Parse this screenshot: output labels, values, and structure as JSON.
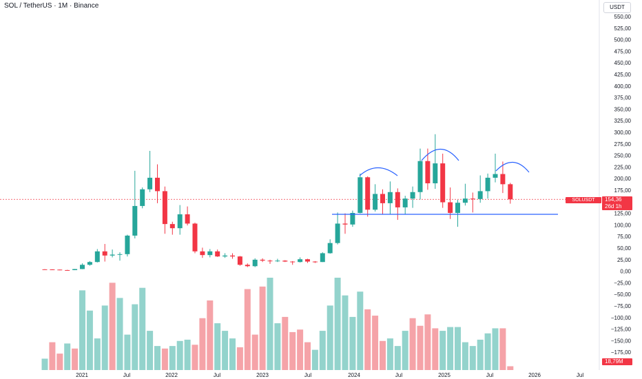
{
  "header": {
    "title": "SOL / TetherUS · 1M · Binance",
    "currency": "USDT"
  },
  "badges": {
    "ticker": "SOLUSDT",
    "price": "154,36",
    "countdown": "26d 1h",
    "volume": "18,79M"
  },
  "colors": {
    "up": "#26a69a",
    "down": "#f23645",
    "up_volume": "#93d3cc",
    "down_volume": "#f5a3a8",
    "support_line": "#2962ff",
    "arc": "#2962ff",
    "price_line": "#f23645"
  },
  "chart_data": {
    "type": "candlestick",
    "y_ticks": [
      "550,00",
      "525,00",
      "500,00",
      "475,00",
      "450,00",
      "425,00",
      "400,00",
      "375,00",
      "350,00",
      "325,00",
      "300,00",
      "275,00",
      "250,00",
      "225,00",
      "200,00",
      "175,00",
      "150,00",
      "125,00",
      "100,00",
      "75,00",
      "50,00",
      "25,00",
      "0,00",
      "−25,00",
      "−50,00",
      "−75,00",
      "−100,00",
      "−125,00",
      "−150,00",
      "−175,00"
    ],
    "x_ticks": [
      "2021",
      "Jul",
      "2022",
      "Jul",
      "2023",
      "Jul",
      "2024",
      "Jul",
      "2025",
      "Jul",
      "2026",
      "Jul"
    ],
    "support_level": 122,
    "current_price": 154.36,
    "candles": [
      {
        "date": "2020-09",
        "o": 3.2,
        "h": 3.6,
        "l": 2.5,
        "c": 3.0
      },
      {
        "date": "2020-10",
        "o": 3.0,
        "h": 3.4,
        "l": 2.5,
        "c": 2.6
      },
      {
        "date": "2020-11",
        "o": 2.6,
        "h": 2.8,
        "l": 1.2,
        "c": 1.6
      },
      {
        "date": "2020-12",
        "o": 1.6,
        "h": 2.2,
        "l": 1.0,
        "c": 1.5
      },
      {
        "date": "2021-01",
        "o": 1.5,
        "h": 4.0,
        "l": 1.4,
        "c": 3.8
      },
      {
        "date": "2021-02",
        "o": 3.8,
        "h": 16,
        "l": 3.5,
        "c": 13
      },
      {
        "date": "2021-03",
        "o": 13,
        "h": 21,
        "l": 11,
        "c": 19
      },
      {
        "date": "2021-04",
        "o": 19,
        "h": 47,
        "l": 18,
        "c": 42
      },
      {
        "date": "2021-05",
        "o": 42,
        "h": 58,
        "l": 20,
        "c": 33
      },
      {
        "date": "2021-06",
        "o": 33,
        "h": 46,
        "l": 29,
        "c": 35
      },
      {
        "date": "2021-07",
        "o": 35,
        "h": 40,
        "l": 22,
        "c": 36
      },
      {
        "date": "2021-08",
        "o": 36,
        "h": 78,
        "l": 31,
        "c": 76
      },
      {
        "date": "2021-09",
        "o": 76,
        "h": 216,
        "l": 70,
        "c": 140
      },
      {
        "date": "2021-10",
        "o": 140,
        "h": 180,
        "l": 135,
        "c": 176
      },
      {
        "date": "2021-11",
        "o": 176,
        "h": 259,
        "l": 170,
        "c": 201
      },
      {
        "date": "2021-12",
        "o": 201,
        "h": 230,
        "l": 146,
        "c": 172
      },
      {
        "date": "2022-01",
        "o": 172,
        "h": 182,
        "l": 80,
        "c": 101
      },
      {
        "date": "2022-02",
        "o": 101,
        "h": 106,
        "l": 78,
        "c": 92
      },
      {
        "date": "2022-03",
        "o": 92,
        "h": 142,
        "l": 78,
        "c": 122
      },
      {
        "date": "2022-04",
        "o": 122,
        "h": 139,
        "l": 98,
        "c": 102
      },
      {
        "date": "2022-05",
        "o": 102,
        "h": 104,
        "l": 38,
        "c": 42
      },
      {
        "date": "2022-06",
        "o": 42,
        "h": 50,
        "l": 28,
        "c": 34
      },
      {
        "date": "2022-07",
        "o": 34,
        "h": 47,
        "l": 29,
        "c": 42
      },
      {
        "date": "2022-08",
        "o": 42,
        "h": 46,
        "l": 30,
        "c": 31
      },
      {
        "date": "2022-09",
        "o": 31,
        "h": 38,
        "l": 28,
        "c": 33
      },
      {
        "date": "2022-10",
        "o": 33,
        "h": 38,
        "l": 26,
        "c": 31
      },
      {
        "date": "2022-11",
        "o": 31,
        "h": 32,
        "l": 11,
        "c": 13
      },
      {
        "date": "2022-12",
        "o": 13,
        "h": 16,
        "l": 8,
        "c": 10
      },
      {
        "date": "2023-01",
        "o": 10,
        "h": 27,
        "l": 8,
        "c": 24
      },
      {
        "date": "2023-02",
        "o": 24,
        "h": 27,
        "l": 19,
        "c": 22
      },
      {
        "date": "2023-03",
        "o": 22,
        "h": 24,
        "l": 15,
        "c": 21
      },
      {
        "date": "2023-04",
        "o": 21,
        "h": 26,
        "l": 19,
        "c": 22
      },
      {
        "date": "2023-05",
        "o": 22,
        "h": 23,
        "l": 19,
        "c": 20
      },
      {
        "date": "2023-06",
        "o": 20,
        "h": 21,
        "l": 13,
        "c": 19
      },
      {
        "date": "2023-07",
        "o": 19,
        "h": 29,
        "l": 18,
        "c": 25
      },
      {
        "date": "2023-08",
        "o": 25,
        "h": 26,
        "l": 17,
        "c": 20
      },
      {
        "date": "2023-09",
        "o": 20,
        "h": 21,
        "l": 17,
        "c": 19
      },
      {
        "date": "2023-10",
        "o": 19,
        "h": 40,
        "l": 19,
        "c": 38
      },
      {
        "date": "2023-11",
        "o": 38,
        "h": 68,
        "l": 37,
        "c": 60
      },
      {
        "date": "2023-12",
        "o": 60,
        "h": 126,
        "l": 57,
        "c": 102
      },
      {
        "date": "2024-01",
        "o": 102,
        "h": 124,
        "l": 80,
        "c": 100
      },
      {
        "date": "2024-02",
        "o": 100,
        "h": 130,
        "l": 95,
        "c": 125
      },
      {
        "date": "2024-03",
        "o": 125,
        "h": 210,
        "l": 124,
        "c": 202
      },
      {
        "date": "2024-04",
        "o": 202,
        "h": 204,
        "l": 117,
        "c": 132
      },
      {
        "date": "2024-05",
        "o": 132,
        "h": 187,
        "l": 128,
        "c": 166
      },
      {
        "date": "2024-06",
        "o": 166,
        "h": 176,
        "l": 122,
        "c": 146
      },
      {
        "date": "2024-07",
        "o": 146,
        "h": 193,
        "l": 122,
        "c": 170
      },
      {
        "date": "2024-08",
        "o": 170,
        "h": 178,
        "l": 110,
        "c": 137
      },
      {
        "date": "2024-09",
        "o": 137,
        "h": 162,
        "l": 122,
        "c": 156
      },
      {
        "date": "2024-10",
        "o": 156,
        "h": 182,
        "l": 136,
        "c": 170
      },
      {
        "date": "2024-11",
        "o": 170,
        "h": 264,
        "l": 154,
        "c": 237
      },
      {
        "date": "2024-12",
        "o": 237,
        "h": 264,
        "l": 175,
        "c": 189
      },
      {
        "date": "2025-01",
        "o": 189,
        "h": 295,
        "l": 177,
        "c": 232
      },
      {
        "date": "2025-02",
        "o": 232,
        "h": 253,
        "l": 136,
        "c": 148
      },
      {
        "date": "2025-03",
        "o": 148,
        "h": 180,
        "l": 112,
        "c": 125
      },
      {
        "date": "2025-04",
        "o": 125,
        "h": 153,
        "l": 95,
        "c": 147
      },
      {
        "date": "2025-05",
        "o": 147,
        "h": 188,
        "l": 141,
        "c": 156
      },
      {
        "date": "2025-06",
        "o": 156,
        "h": 169,
        "l": 126,
        "c": 155
      },
      {
        "date": "2025-07",
        "o": 155,
        "h": 206,
        "l": 147,
        "c": 172
      },
      {
        "date": "2025-08",
        "o": 172,
        "h": 210,
        "l": 156,
        "c": 201
      },
      {
        "date": "2025-09",
        "o": 201,
        "h": 253,
        "l": 191,
        "c": 209
      },
      {
        "date": "2025-10",
        "o": 209,
        "h": 236,
        "l": 168,
        "c": 187
      },
      {
        "date": "2025-11",
        "o": 187,
        "h": 190,
        "l": 145,
        "c": 154.36
      }
    ],
    "volume": [
      {
        "date": "2020-09",
        "v": 9,
        "up": true
      },
      {
        "date": "2020-10",
        "v": 22,
        "up": false
      },
      {
        "date": "2020-11",
        "v": 13,
        "up": false
      },
      {
        "date": "2020-12",
        "v": 21,
        "up": true
      },
      {
        "date": "2021-01",
        "v": 17,
        "up": false
      },
      {
        "date": "2021-02",
        "v": 63,
        "up": true
      },
      {
        "date": "2021-03",
        "v": 47,
        "up": true
      },
      {
        "date": "2021-04",
        "v": 25,
        "up": true
      },
      {
        "date": "2021-05",
        "v": 51,
        "up": true
      },
      {
        "date": "2021-06",
        "v": 69,
        "up": false
      },
      {
        "date": "2021-07",
        "v": 57,
        "up": true
      },
      {
        "date": "2021-08",
        "v": 28,
        "up": true
      },
      {
        "date": "2021-09",
        "v": 52,
        "up": true
      },
      {
        "date": "2021-10",
        "v": 65,
        "up": true
      },
      {
        "date": "2021-11",
        "v": 31,
        "up": true
      },
      {
        "date": "2021-12",
        "v": 19,
        "up": true
      },
      {
        "date": "2022-01",
        "v": 17,
        "up": false
      },
      {
        "date": "2022-02",
        "v": 19,
        "up": true
      },
      {
        "date": "2022-03",
        "v": 23,
        "up": true
      },
      {
        "date": "2022-04",
        "v": 24,
        "up": true
      },
      {
        "date": "2022-05",
        "v": 20,
        "up": false
      },
      {
        "date": "2022-06",
        "v": 41,
        "up": false
      },
      {
        "date": "2022-07",
        "v": 55,
        "up": false
      },
      {
        "date": "2022-08",
        "v": 37,
        "up": true
      },
      {
        "date": "2022-09",
        "v": 31,
        "up": true
      },
      {
        "date": "2022-10",
        "v": 25,
        "up": true
      },
      {
        "date": "2022-11",
        "v": 18,
        "up": false
      },
      {
        "date": "2022-12",
        "v": 64,
        "up": false
      },
      {
        "date": "2023-01",
        "v": 28,
        "up": false
      },
      {
        "date": "2023-02",
        "v": 66,
        "up": false
      },
      {
        "date": "2023-03",
        "v": 73,
        "up": true
      },
      {
        "date": "2023-04",
        "v": 37,
        "up": true
      },
      {
        "date": "2023-05",
        "v": 42,
        "up": false
      },
      {
        "date": "2023-06",
        "v": 30,
        "up": false
      },
      {
        "date": "2023-07",
        "v": 32,
        "up": false
      },
      {
        "date": "2023-08",
        "v": 22,
        "up": false
      },
      {
        "date": "2023-09",
        "v": 16,
        "up": true
      },
      {
        "date": "2023-10",
        "v": 31,
        "up": true
      },
      {
        "date": "2023-11",
        "v": 51,
        "up": true
      },
      {
        "date": "2023-12",
        "v": 73,
        "up": true
      },
      {
        "date": "2024-01",
        "v": 59,
        "up": true
      },
      {
        "date": "2024-02",
        "v": 42,
        "up": true
      },
      {
        "date": "2024-03",
        "v": 62,
        "up": true
      },
      {
        "date": "2024-04",
        "v": 48,
        "up": false
      },
      {
        "date": "2024-05",
        "v": 43,
        "up": false
      },
      {
        "date": "2024-06",
        "v": 23,
        "up": false
      },
      {
        "date": "2024-07",
        "v": 25,
        "up": true
      },
      {
        "date": "2024-08",
        "v": 19,
        "up": true
      },
      {
        "date": "2024-09",
        "v": 31,
        "up": true
      },
      {
        "date": "2024-10",
        "v": 41,
        "up": false
      },
      {
        "date": "2024-11",
        "v": 35,
        "up": false
      },
      {
        "date": "2024-12",
        "v": 44,
        "up": false
      },
      {
        "date": "2025-01",
        "v": 33,
        "up": false
      },
      {
        "date": "2025-02",
        "v": 31,
        "up": true
      },
      {
        "date": "2025-03",
        "v": 34,
        "up": true
      },
      {
        "date": "2025-04",
        "v": 34,
        "up": true
      },
      {
        "date": "2025-05",
        "v": 22,
        "up": true
      },
      {
        "date": "2025-06",
        "v": 19,
        "up": true
      },
      {
        "date": "2025-07",
        "v": 24,
        "up": true
      },
      {
        "date": "2025-08",
        "v": 29,
        "up": true
      },
      {
        "date": "2025-09",
        "v": 33,
        "up": true
      },
      {
        "date": "2025-10",
        "v": 33,
        "up": false
      },
      {
        "date": "2025-11",
        "v": 3,
        "up": false
      }
    ]
  }
}
